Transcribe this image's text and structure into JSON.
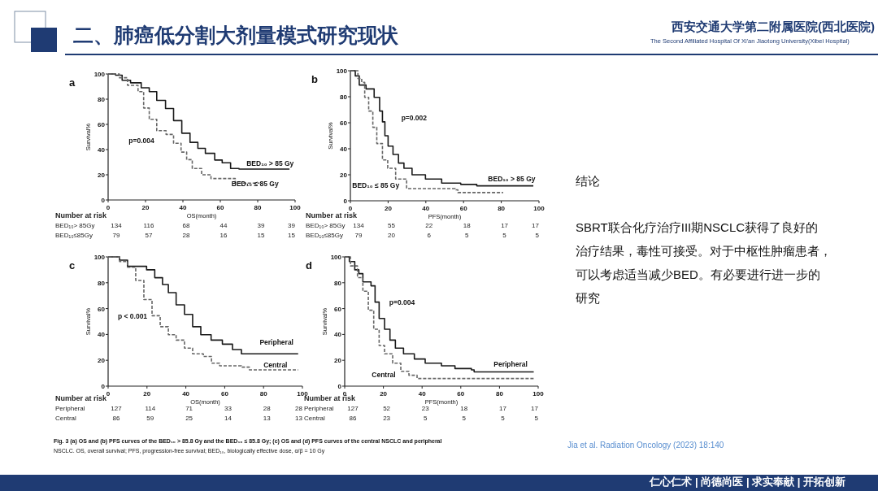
{
  "chart_data": [
    {
      "type": "step",
      "title": "a",
      "xlabel": "OS(month)",
      "ylabel": "Survival%",
      "xlim": [
        0,
        100
      ],
      "ylim": [
        0,
        100
      ],
      "xticks": [
        0,
        20,
        40,
        60,
        80,
        100
      ],
      "yticks": [
        0,
        20,
        40,
        60,
        80,
        100
      ],
      "annotations": [
        "p=0.004",
        "Number at risk",
        "BED₁₀> 85Gy",
        "134",
        "116",
        "68",
        "44",
        "39",
        "39",
        "BED₁₀≤85Gy",
        "79",
        "57",
        "28",
        "16",
        "15",
        "15"
      ],
      "series": [
        {
          "name": "BED₁₀ > 85 Gy",
          "color": "#1a1a1a",
          "line_style": "solid",
          "x": [
            0,
            4,
            7.5,
            12,
            17.7,
            22,
            26,
            30.7,
            35,
            39.4,
            43.8,
            48,
            52,
            57,
            61,
            65.5,
            70,
            97
          ],
          "values": [
            100,
            99,
            95,
            93,
            89,
            86,
            79,
            72.6,
            63,
            53,
            45.7,
            41,
            37,
            31.7,
            29.5,
            25,
            24.5,
            24.5
          ]
        },
        {
          "name": "BED₁₀ ≤ 85 Gy",
          "color": "#666666",
          "line_style": "dashed",
          "x": [
            0,
            6,
            10.4,
            16,
            19,
            22,
            26,
            31,
            35,
            39,
            42,
            45,
            50,
            55,
            67,
            68,
            81
          ],
          "values": [
            100,
            97,
            91,
            86,
            73,
            64,
            55,
            52,
            45,
            38,
            32,
            25,
            20,
            17,
            17,
            13.4,
            13.4
          ]
        }
      ]
    },
    {
      "type": "step",
      "title": "b",
      "xlabel": "PFS(month)",
      "ylabel": "Survival%",
      "xlim": [
        0,
        100
      ],
      "ylim": [
        0,
        100
      ],
      "xticks": [
        0,
        20,
        40,
        60,
        80,
        100
      ],
      "yticks": [
        0,
        20,
        40,
        60,
        80,
        100
      ],
      "annotations": [
        "p=0.002",
        "Number at risk",
        "BED₁₀> 85Gy",
        "134",
        "55",
        "22",
        "18",
        "17",
        "17",
        "BED₁₀≤85Gy",
        "79",
        "20",
        "6",
        "5",
        "5",
        "5"
      ],
      "series": [
        {
          "name": "BED₁₀ > 85 Gy",
          "color": "#1a1a1a",
          "line_style": "solid",
          "x": [
            0,
            2.6,
            4.7,
            8.3,
            12.6,
            15.5,
            17,
            18.3,
            20,
            22.6,
            25.5,
            28.4,
            32.7,
            39.8,
            45.6,
            48.4,
            57,
            58.5,
            65.6,
            67,
            97
          ],
          "values": [
            100,
            96,
            89,
            86,
            79.5,
            69,
            60.7,
            50,
            42,
            35.6,
            29,
            25,
            20,
            16.7,
            16.7,
            13.6,
            13.6,
            12.6,
            12.6,
            11.5,
            11.5
          ]
        },
        {
          "name": "BED₁₀ ≤ 85 Gy",
          "color": "#666666",
          "line_style": "dashed",
          "x": [
            0,
            4,
            6,
            7.6,
            9.7,
            11.9,
            14,
            17,
            19.8,
            24,
            29.8,
            55.6,
            57,
            81
          ],
          "values": [
            100,
            94,
            91,
            79.5,
            69,
            56.5,
            44,
            31.4,
            25,
            16.7,
            9.4,
            8.4,
            6.3,
            6.3
          ]
        }
      ]
    },
    {
      "type": "step",
      "title": "c",
      "xlabel": "OS(month)",
      "ylabel": "Survival%",
      "xlim": [
        0,
        100
      ],
      "ylim": [
        0,
        100
      ],
      "xticks": [
        0,
        20,
        40,
        60,
        80,
        100
      ],
      "yticks": [
        0,
        20,
        40,
        60,
        80,
        100
      ],
      "annotations": [
        "p < 0.001",
        "Number at risk",
        "Peripheral",
        "127",
        "114",
        "71",
        "33",
        "28",
        "28",
        "Central",
        "86",
        "59",
        "25",
        "14",
        "13",
        "13"
      ],
      "series": [
        {
          "name": "Peripheral",
          "color": "#1a1a1a",
          "line_style": "solid",
          "x": [
            0,
            5.9,
            10,
            15.6,
            19.8,
            24,
            28,
            31,
            35,
            39.3,
            43.5,
            47.7,
            53,
            58.8,
            64,
            68.6,
            97.8
          ],
          "values": [
            100,
            97.5,
            92.7,
            92.7,
            90,
            83.9,
            78.6,
            72.3,
            62.9,
            55.5,
            46,
            39.8,
            35.6,
            32.5,
            28.3,
            25,
            25
          ]
        },
        {
          "name": "Central",
          "color": "#666666",
          "line_style": "dashed",
          "x": [
            0,
            5.9,
            10,
            14.2,
            18.4,
            22.6,
            26.8,
            31,
            35,
            39.3,
            43.5,
            49,
            53.2,
            57.4,
            68.6,
            72.7,
            97.8
          ],
          "values": [
            100,
            96.4,
            92,
            81.8,
            67,
            54.5,
            46,
            39.8,
            35.6,
            29.4,
            25,
            23,
            17.8,
            15.7,
            14.7,
            12.6,
            12.6
          ]
        }
      ]
    },
    {
      "type": "step",
      "title": "d",
      "xlabel": "PFS(month)",
      "ylabel": "Survival%",
      "xlim": [
        0,
        100
      ],
      "ylim": [
        0,
        100
      ],
      "xticks": [
        0,
        20,
        40,
        60,
        80,
        100
      ],
      "yticks": [
        0,
        20,
        40,
        60,
        80,
        100
      ],
      "annotations": [
        "p=0.004",
        "Number at risk",
        "Peripheral",
        "127",
        "52",
        "23",
        "18",
        "17",
        "17",
        "Central",
        "86",
        "23",
        "5",
        "5",
        "5",
        "5"
      ],
      "series": [
        {
          "name": "Peripheral",
          "color": "#1a1a1a",
          "line_style": "solid",
          "x": [
            0,
            2.4,
            5.2,
            7.3,
            9.4,
            11.5,
            13.6,
            15.7,
            17.8,
            20.6,
            23.4,
            26.2,
            30.4,
            36,
            41.6,
            47.3,
            50,
            57,
            65.5,
            66.9,
            97.7
          ],
          "values": [
            100,
            96.4,
            90,
            87,
            80.7,
            80.7,
            77.6,
            65,
            52.4,
            44,
            35.6,
            29.4,
            25,
            21,
            17.8,
            17.8,
            15.7,
            13.6,
            12.6,
            11,
            11
          ]
        },
        {
          "name": "Central",
          "color": "#666666",
          "line_style": "dashed",
          "x": [
            0,
            3,
            6.6,
            9.4,
            12.2,
            15,
            17.8,
            20.6,
            24.8,
            29,
            33.2,
            37.4,
            97.7
          ],
          "values": [
            100,
            93,
            84,
            73.4,
            58.7,
            44,
            31.4,
            25,
            17.8,
            11.5,
            8.4,
            5.9,
            5.9
          ]
        }
      ]
    },
    {
      "type": "other",
      "title": "二、肺癌低分割大剂量模式研究现状",
      "annotations": [
        "结论",
        "SBRT联合化疗治疗III期NSCLC获得了良好的",
        "治疗结果，毒性可接受。对于中枢性肿瘤患者，",
        "可以考虑适当减少BED。有必要进行进一步的",
        "研究",
        "Fig. 3  (a) OS and (b) PFS curves of the BED₁₀ > 85.8 Gy and the BED₁₀ ≤ 85.8 Gy; (c) OS and (d) PFS curves of the central NSCLC and peripheral",
        "NSCLC. OS, overall survival; PFS, progression-free survival; BED₁₀, biologically effective dose, α/β = 10 Gy",
        "Jia et al. Radiation Oncology (2023) 18:140",
        "仁心仁术 | 尚德尚医 | 求实奉献 | 开拓创新",
        "西安交通大学第二附属医院(西北医院)",
        "The Second Affiliated Hospital Of Xi'an Jiaotong University(Xibei Hospital)"
      ]
    }
  ]
}
